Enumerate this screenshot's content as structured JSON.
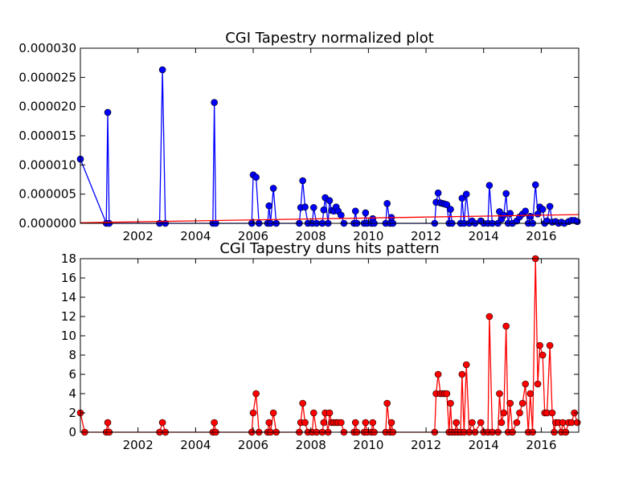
{
  "colors": {
    "blue": "#0000ff",
    "red": "#ff0000",
    "axis": "#000000",
    "background": "#ffffff"
  },
  "chart_data": [
    {
      "type": "line",
      "title": "CGI Tapestry normalized plot",
      "xlabel": "",
      "ylabel": "",
      "xlim": [
        2000.0,
        2017.3
      ],
      "ylim": [
        0,
        3e-05
      ],
      "xticks": [
        "2002",
        "2004",
        "2006",
        "2008",
        "2010",
        "2012",
        "2014",
        "2016"
      ],
      "xtick_values": [
        2002,
        2004,
        2006,
        2008,
        2010,
        2012,
        2014,
        2016
      ],
      "yticks": [
        "0.000000",
        "0.000005",
        "0.000010",
        "0.000015",
        "0.000020",
        "0.000025",
        "0.000030"
      ],
      "ytick_values": [
        0,
        5e-06,
        1e-05,
        1.5e-05,
        2e-05,
        2.5e-05,
        3e-05
      ],
      "grid": false,
      "series": [
        {
          "color": "#0000ff",
          "marker": "circle",
          "points": [
            [
              2000.0,
              1.1e-05
            ],
            [
              2000.9,
              0.0
            ],
            [
              2000.95,
              1.9e-05
            ],
            [
              2001.0,
              0.0
            ],
            [
              2002.75,
              0.0
            ],
            [
              2002.85,
              2.63e-05
            ],
            [
              2002.95,
              0.0
            ],
            [
              2004.6,
              0.0
            ],
            [
              2004.65,
              2.07e-05
            ],
            [
              2004.7,
              0.0
            ],
            [
              2005.95,
              0.0
            ],
            [
              2006.0,
              8.3e-06
            ],
            [
              2006.1,
              7.9e-06
            ],
            [
              2006.2,
              0.0
            ],
            [
              2006.5,
              0.0
            ],
            [
              2006.55,
              3e-06
            ],
            [
              2006.6,
              0.0
            ],
            [
              2006.7,
              6e-06
            ],
            [
              2006.8,
              0.0
            ],
            [
              2007.6,
              0.0
            ],
            [
              2007.65,
              2.7e-06
            ],
            [
              2007.72,
              7.3e-06
            ],
            [
              2007.8,
              2.8e-06
            ],
            [
              2007.9,
              0.0
            ],
            [
              2008.05,
              0.0
            ],
            [
              2008.1,
              2.7e-06
            ],
            [
              2008.2,
              0.0
            ],
            [
              2008.4,
              0.0
            ],
            [
              2008.45,
              2.3e-06
            ],
            [
              2008.5,
              4.4e-06
            ],
            [
              2008.6,
              0.0
            ],
            [
              2008.65,
              3.9e-06
            ],
            [
              2008.72,
              2.2e-06
            ],
            [
              2008.8,
              2.1e-06
            ],
            [
              2008.88,
              2.8e-06
            ],
            [
              2008.95,
              2.1e-06
            ],
            [
              2009.05,
              1.4e-06
            ],
            [
              2009.15,
              0.0
            ],
            [
              2009.5,
              0.0
            ],
            [
              2009.55,
              2.1e-06
            ],
            [
              2009.6,
              0.0
            ],
            [
              2009.85,
              0.0
            ],
            [
              2009.9,
              1.8e-06
            ],
            [
              2009.95,
              0.0
            ],
            [
              2010.1,
              0.0
            ],
            [
              2010.15,
              8e-07
            ],
            [
              2010.2,
              0.0
            ],
            [
              2010.6,
              0.0
            ],
            [
              2010.65,
              3.4e-06
            ],
            [
              2010.75,
              0.0
            ],
            [
              2010.8,
              1e-06
            ],
            [
              2010.85,
              0.0
            ],
            [
              2012.3,
              0.0
            ],
            [
              2012.35,
              3.6e-06
            ],
            [
              2012.42,
              5.2e-06
            ],
            [
              2012.5,
              3.5e-06
            ],
            [
              2012.58,
              3.4e-06
            ],
            [
              2012.65,
              3.3e-06
            ],
            [
              2012.72,
              3.2e-06
            ],
            [
              2012.8,
              0.0
            ],
            [
              2012.85,
              2.4e-06
            ],
            [
              2012.9,
              0.0
            ],
            [
              2013.2,
              0.0
            ],
            [
              2013.25,
              4.3e-06
            ],
            [
              2013.32,
              0.0
            ],
            [
              2013.4,
              5e-06
            ],
            [
              2013.5,
              0.0
            ],
            [
              2013.6,
              4e-07
            ],
            [
              2013.7,
              0.0
            ],
            [
              2013.9,
              4e-07
            ],
            [
              2014.0,
              0.0
            ],
            [
              2014.15,
              0.0
            ],
            [
              2014.2,
              6.5e-06
            ],
            [
              2014.3,
              0.0
            ],
            [
              2014.5,
              0.0
            ],
            [
              2014.55,
              2e-06
            ],
            [
              2014.62,
              7e-07
            ],
            [
              2014.7,
              1.4e-06
            ],
            [
              2014.78,
              5.1e-06
            ],
            [
              2014.85,
              0.0
            ],
            [
              2014.92,
              1.7e-06
            ],
            [
              2015.0,
              0.0
            ],
            [
              2015.15,
              4e-07
            ],
            [
              2015.25,
              1.1e-06
            ],
            [
              2015.35,
              1.6e-06
            ],
            [
              2015.45,
              2.1e-06
            ],
            [
              2015.55,
              0.0
            ],
            [
              2015.62,
              1.2e-06
            ],
            [
              2015.7,
              0.0
            ],
            [
              2015.8,
              6.6e-06
            ],
            [
              2015.88,
              1.6e-06
            ],
            [
              2015.95,
              2.8e-06
            ],
            [
              2016.05,
              2.4e-06
            ],
            [
              2016.12,
              0.0
            ],
            [
              2016.2,
              4e-07
            ],
            [
              2016.3,
              2.9e-06
            ],
            [
              2016.38,
              2e-07
            ],
            [
              2016.5,
              3e-07
            ],
            [
              2016.6,
              0.0
            ],
            [
              2016.7,
              2e-07
            ],
            [
              2016.8,
              0.0
            ],
            [
              2016.95,
              3e-07
            ],
            [
              2017.05,
              5e-07
            ],
            [
              2017.15,
              5e-07
            ],
            [
              2017.25,
              3e-07
            ]
          ]
        },
        {
          "color": "#ff0000",
          "marker": "none",
          "points": [
            [
              2000.0,
              1e-07
            ],
            [
              2017.3,
              1.5e-06
            ]
          ]
        }
      ]
    },
    {
      "type": "line",
      "title": "CGI Tapestry duns hits pattern",
      "xlabel": "",
      "ylabel": "",
      "xlim": [
        2000.0,
        2017.3
      ],
      "ylim": [
        0,
        18
      ],
      "xticks": [
        "2002",
        "2004",
        "2006",
        "2008",
        "2010",
        "2012",
        "2014",
        "2016"
      ],
      "xtick_values": [
        2002,
        2004,
        2006,
        2008,
        2010,
        2012,
        2014,
        2016
      ],
      "yticks": [
        "0",
        "2",
        "4",
        "6",
        "8",
        "10",
        "12",
        "14",
        "16",
        "18"
      ],
      "ytick_values": [
        0,
        2,
        4,
        6,
        8,
        10,
        12,
        14,
        16,
        18
      ],
      "grid": false,
      "series": [
        {
          "color": "#ff0000",
          "marker": "circle",
          "points": [
            [
              2000.0,
              2
            ],
            [
              2000.15,
              0
            ],
            [
              2000.9,
              0
            ],
            [
              2000.95,
              1
            ],
            [
              2001.0,
              0
            ],
            [
              2002.75,
              0
            ],
            [
              2002.85,
              1
            ],
            [
              2002.95,
              0
            ],
            [
              2004.6,
              0
            ],
            [
              2004.65,
              1
            ],
            [
              2004.7,
              0
            ],
            [
              2005.95,
              0
            ],
            [
              2006.0,
              2
            ],
            [
              2006.1,
              4
            ],
            [
              2006.2,
              0
            ],
            [
              2006.5,
              0
            ],
            [
              2006.55,
              1
            ],
            [
              2006.6,
              0
            ],
            [
              2006.7,
              2
            ],
            [
              2006.8,
              0
            ],
            [
              2007.6,
              0
            ],
            [
              2007.65,
              1
            ],
            [
              2007.72,
              3
            ],
            [
              2007.8,
              1
            ],
            [
              2007.9,
              0
            ],
            [
              2008.05,
              0
            ],
            [
              2008.1,
              2
            ],
            [
              2008.2,
              0
            ],
            [
              2008.4,
              0
            ],
            [
              2008.45,
              1
            ],
            [
              2008.5,
              2
            ],
            [
              2008.6,
              0
            ],
            [
              2008.65,
              2
            ],
            [
              2008.72,
              1
            ],
            [
              2008.8,
              1
            ],
            [
              2008.88,
              1
            ],
            [
              2008.95,
              1
            ],
            [
              2009.05,
              1
            ],
            [
              2009.15,
              0
            ],
            [
              2009.5,
              0
            ],
            [
              2009.55,
              1
            ],
            [
              2009.6,
              0
            ],
            [
              2009.85,
              0
            ],
            [
              2009.9,
              1
            ],
            [
              2009.95,
              0
            ],
            [
              2010.1,
              0
            ],
            [
              2010.15,
              1
            ],
            [
              2010.2,
              0
            ],
            [
              2010.6,
              0
            ],
            [
              2010.65,
              3
            ],
            [
              2010.75,
              0
            ],
            [
              2010.8,
              1
            ],
            [
              2010.85,
              0
            ],
            [
              2012.3,
              0
            ],
            [
              2012.35,
              4
            ],
            [
              2012.42,
              6
            ],
            [
              2012.5,
              4
            ],
            [
              2012.58,
              4
            ],
            [
              2012.65,
              4
            ],
            [
              2012.72,
              4
            ],
            [
              2012.8,
              0
            ],
            [
              2012.85,
              3
            ],
            [
              2012.9,
              0
            ],
            [
              2013.0,
              0
            ],
            [
              2013.05,
              1
            ],
            [
              2013.1,
              0
            ],
            [
              2013.2,
              0
            ],
            [
              2013.25,
              6
            ],
            [
              2013.32,
              0
            ],
            [
              2013.4,
              7
            ],
            [
              2013.5,
              0
            ],
            [
              2013.6,
              1
            ],
            [
              2013.7,
              0
            ],
            [
              2013.9,
              1
            ],
            [
              2014.0,
              0
            ],
            [
              2014.15,
              0
            ],
            [
              2014.2,
              12
            ],
            [
              2014.3,
              0
            ],
            [
              2014.5,
              0
            ],
            [
              2014.55,
              4
            ],
            [
              2014.62,
              1
            ],
            [
              2014.7,
              2
            ],
            [
              2014.78,
              11
            ],
            [
              2014.85,
              0
            ],
            [
              2014.92,
              3
            ],
            [
              2015.0,
              0
            ],
            [
              2015.15,
              1
            ],
            [
              2015.25,
              2
            ],
            [
              2015.35,
              3
            ],
            [
              2015.45,
              5
            ],
            [
              2015.55,
              0
            ],
            [
              2015.62,
              4
            ],
            [
              2015.7,
              0
            ],
            [
              2015.8,
              18
            ],
            [
              2015.88,
              5
            ],
            [
              2015.95,
              9
            ],
            [
              2016.05,
              8
            ],
            [
              2016.12,
              2
            ],
            [
              2016.2,
              2
            ],
            [
              2016.3,
              9
            ],
            [
              2016.38,
              2
            ],
            [
              2016.45,
              0
            ],
            [
              2016.5,
              1
            ],
            [
              2016.6,
              1
            ],
            [
              2016.7,
              0
            ],
            [
              2016.75,
              1
            ],
            [
              2016.85,
              0
            ],
            [
              2016.95,
              1
            ],
            [
              2017.05,
              1
            ],
            [
              2017.15,
              2
            ],
            [
              2017.25,
              1
            ]
          ]
        }
      ]
    }
  ]
}
